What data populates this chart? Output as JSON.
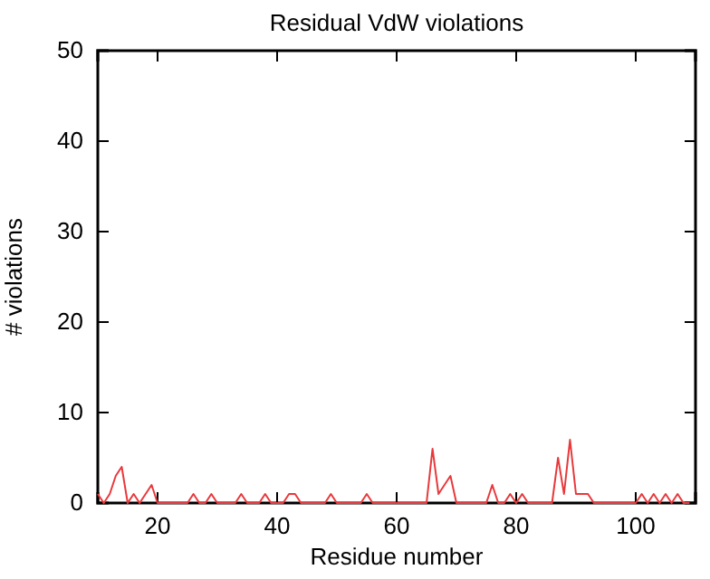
{
  "chart_data": {
    "type": "line",
    "title": "Residual VdW violations",
    "xlabel": "Residue number",
    "ylabel": "# violations",
    "x": [
      10,
      11,
      12,
      13,
      14,
      15,
      16,
      17,
      18,
      19,
      20,
      21,
      22,
      23,
      24,
      25,
      26,
      27,
      28,
      29,
      30,
      31,
      32,
      33,
      34,
      35,
      36,
      37,
      38,
      39,
      40,
      41,
      42,
      43,
      44,
      45,
      46,
      47,
      48,
      49,
      50,
      51,
      52,
      53,
      54,
      55,
      56,
      57,
      58,
      59,
      60,
      61,
      62,
      63,
      64,
      65,
      66,
      67,
      68,
      69,
      70,
      71,
      72,
      73,
      74,
      75,
      76,
      77,
      78,
      79,
      80,
      81,
      82,
      83,
      84,
      85,
      86,
      87,
      88,
      89,
      90,
      91,
      92,
      93,
      94,
      95,
      96,
      97,
      98,
      99,
      100,
      101,
      102,
      103,
      104,
      105,
      106,
      107,
      108,
      109
    ],
    "series": [
      {
        "color": "#e8393c",
        "values": [
          1,
          0,
          1,
          3,
          4,
          0,
          1,
          0,
          1,
          2,
          0,
          0,
          0,
          0,
          0,
          0,
          1,
          0,
          0,
          1,
          0,
          0,
          0,
          0,
          1,
          0,
          0,
          0,
          1,
          0,
          0,
          0,
          1,
          1,
          0,
          0,
          0,
          0,
          0,
          1,
          0,
          0,
          0,
          0,
          0,
          1,
          0,
          0,
          0,
          0,
          0,
          0,
          0,
          0,
          0,
          0,
          6,
          1,
          2,
          3,
          0,
          0,
          0,
          0,
          0,
          0,
          2,
          0,
          0,
          1,
          0,
          1,
          0,
          0,
          0,
          0,
          0,
          5,
          1,
          7,
          1,
          1,
          1,
          0,
          0,
          0,
          0,
          0,
          0,
          0,
          0,
          1,
          0,
          1,
          0,
          1,
          0,
          1,
          0,
          0
        ]
      }
    ],
    "xlim": [
      10,
      110
    ],
    "xticks": [
      20,
      40,
      60,
      80,
      100
    ],
    "ylim": [
      0,
      50
    ],
    "yticks": [
      0,
      10,
      20,
      30,
      40,
      50
    ],
    "grid": false,
    "marker": "none",
    "line_style": "solid"
  }
}
